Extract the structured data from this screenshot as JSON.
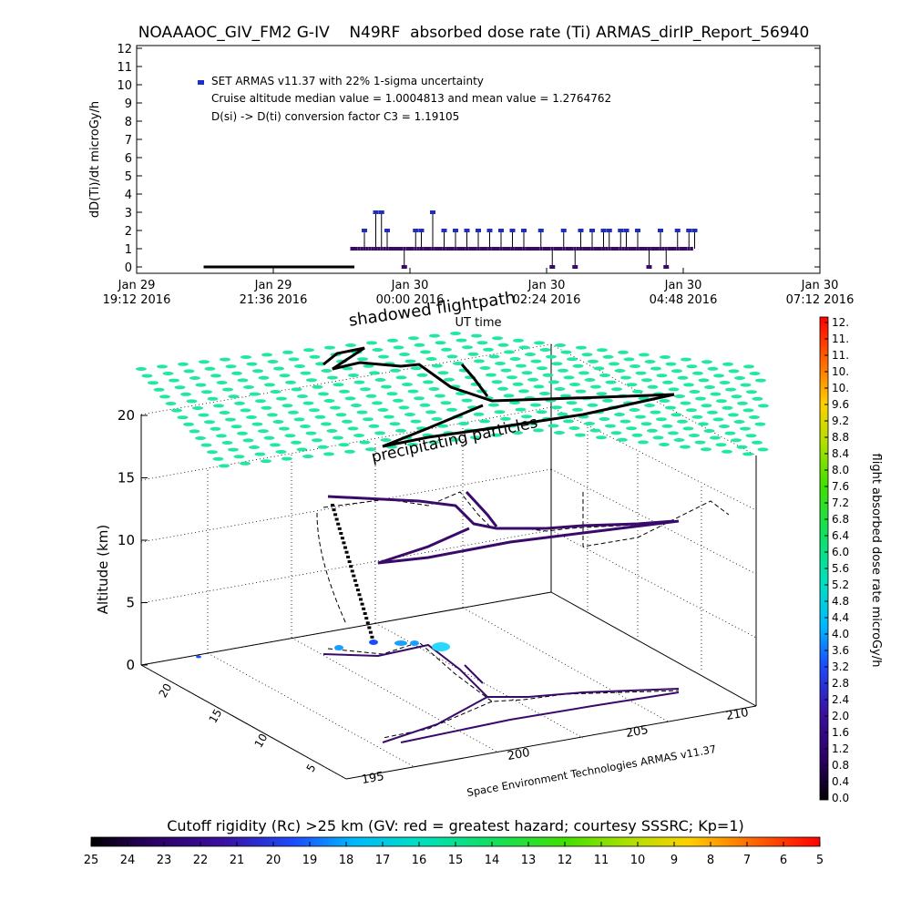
{
  "title": "NOAAAOC_GIV_FM2 G-IV    N49RF  absorbed dose rate (Ti) ARMAS_dirIP_Report_56940",
  "chart_data": [
    {
      "type": "scatter",
      "ylabel": "dD(Ti)/dt microGy/h",
      "xlabel": "UT time",
      "ylim": [
        0,
        12
      ],
      "yticks": [
        "0",
        "1",
        "2",
        "3",
        "4",
        "5",
        "6",
        "7",
        "8",
        "9",
        "10",
        "11",
        "12"
      ],
      "xticks": [
        {
          "date": "Jan 29",
          "time": "19:12 2016"
        },
        {
          "date": "Jan 29",
          "time": "21:36 2016"
        },
        {
          "date": "Jan 30",
          "time": "00:00 2016"
        },
        {
          "date": "Jan 30",
          "time": "02:24 2016"
        },
        {
          "date": "Jan 30",
          "time": "04:48 2016"
        },
        {
          "date": "Jan 30",
          "time": "07:12 2016"
        }
      ],
      "legend": {
        "series_label": "SET ARMAS v11.37 with 22% 1-sigma uncertainty",
        "line2": "Cruise altitude median value = 1.0004813 and mean value = 1.2764762",
        "line3": "D(si) -> D(ti) conversion factor C3 = 1.19105"
      },
      "series": [
        {
          "name": "SET ARMAS v11.37 with 22% 1-sigma uncertainty",
          "x_hours": [
            20.4,
            20.6,
            20.8,
            21.0,
            21.2,
            21.4,
            21.6,
            21.8,
            22.0,
            22.2,
            22.4,
            22.6,
            22.8,
            23.0,
            23.2,
            23.4,
            23.5,
            23.6,
            23.7,
            23.8,
            23.9,
            24.0,
            24.1,
            24.2,
            24.3,
            24.4,
            24.5,
            24.6,
            24.7,
            24.8,
            24.9,
            25.0,
            25.1,
            25.2,
            25.3,
            25.4,
            25.5,
            25.6,
            25.7,
            25.8,
            25.9,
            26.0,
            26.1,
            26.2,
            26.3,
            26.4,
            26.5,
            26.6,
            26.7,
            26.8,
            26.9,
            27.0,
            27.1,
            27.2,
            27.3,
            27.4,
            27.5,
            27.6,
            27.7,
            27.8,
            27.9,
            28.0,
            28.1,
            28.2,
            28.3,
            28.4,
            28.5,
            28.6,
            28.7,
            28.8,
            28.9,
            29.0
          ],
          "y": [
            0,
            0,
            0,
            0,
            0,
            0,
            0,
            0,
            0,
            0,
            0,
            0,
            1,
            1,
            2,
            3,
            3,
            2,
            1,
            1,
            0,
            1,
            2,
            2,
            1,
            3,
            1,
            2,
            1,
            2,
            1,
            2,
            1,
            2,
            1,
            2,
            1,
            2,
            1,
            2,
            1,
            2,
            1,
            1,
            2,
            1,
            0,
            1,
            2,
            1,
            0,
            2,
            1,
            2,
            1,
            2,
            2,
            1,
            2,
            2,
            1,
            2,
            1,
            0,
            1,
            2,
            0,
            1,
            2,
            1,
            2,
            2
          ]
        }
      ]
    },
    {
      "type": "scatter",
      "title": "shadowed flightpath",
      "annotation": "precipitating particles",
      "xlabel": "",
      "ylabel": "Altitude (km)",
      "zticks": [
        "0",
        "5",
        "10",
        "15",
        "20"
      ],
      "lat_ticks": [
        "5",
        "10",
        "15",
        "20"
      ],
      "lon_ticks": [
        "195",
        "200",
        "205",
        "210"
      ],
      "credit": "Space Environment Technologies ARMAS v11.37"
    }
  ],
  "right_colorbar": {
    "label": "flight absorbed dose rate microGy/h",
    "ticks": [
      "0.0",
      "0.4",
      "0.8",
      "1.2",
      "1.6",
      "2.0",
      "2.4",
      "2.8",
      "3.2",
      "3.6",
      "4.0",
      "4.4",
      "4.8",
      "5.2",
      "5.6",
      "6.0",
      "6.4",
      "6.8",
      "7.2",
      "7.6",
      "8.0",
      "8.4",
      "8.8",
      "9.2",
      "9.6",
      "10.",
      "10.",
      "11.",
      "11.",
      "12."
    ]
  },
  "bottom_colorbar": {
    "label": "Cutoff rigidity (Rc) >25 km (GV: red = greatest hazard; courtesy SSSRC; Kp=1)",
    "ticks": [
      "25",
      "24",
      "23",
      "22",
      "21",
      "20",
      "19",
      "18",
      "17",
      "16",
      "15",
      "14",
      "13",
      "12",
      "11",
      "10",
      "9",
      "8",
      "7",
      "6",
      "5"
    ]
  },
  "colors": {
    "data_point": "#3a0a6b",
    "legend_marker": "#1a2fd0",
    "cap_point": "#1e2cc8",
    "grid_dots": "#20e8a0"
  }
}
